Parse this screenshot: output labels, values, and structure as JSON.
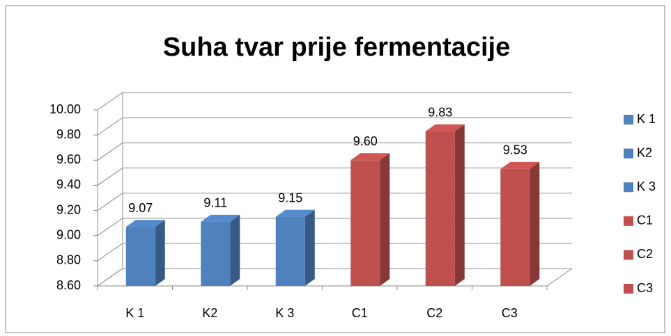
{
  "chart_data": {
    "type": "bar3d",
    "title": "Suha tvar prije fermentacije",
    "categories": [
      "K 1",
      "K2",
      "K 3",
      "C1",
      "C2",
      "C3"
    ],
    "values": [
      9.07,
      9.11,
      9.15,
      9.6,
      9.83,
      9.53
    ],
    "value_labels": [
      "9.07",
      "9.11",
      "9.15",
      "9.60",
      "9.83",
      "9.53"
    ],
    "colors": [
      "#4f81bd",
      "#4f81bd",
      "#4f81bd",
      "#c0504d",
      "#c0504d",
      "#c0504d"
    ],
    "ylim": [
      8.6,
      10.0
    ],
    "yticks": [
      {
        "value": 8.6,
        "label": "8.60"
      },
      {
        "value": 8.8,
        "label": "8.80"
      },
      {
        "value": 9.0,
        "label": "9.00"
      },
      {
        "value": 9.2,
        "label": "9.20"
      },
      {
        "value": 9.4,
        "label": "9.40"
      },
      {
        "value": 9.6,
        "label": "9.60"
      },
      {
        "value": 9.8,
        "label": "9.80"
      },
      {
        "value": 10.0,
        "label": "10.00"
      }
    ],
    "grid": true,
    "legend": "right"
  }
}
